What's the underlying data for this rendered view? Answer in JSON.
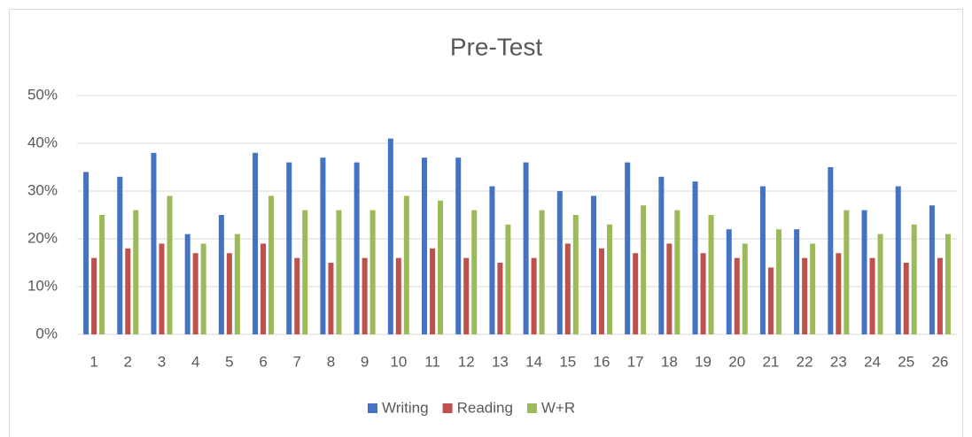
{
  "chart_data": {
    "type": "bar",
    "title": "Pre-Test",
    "categories": [
      "1",
      "2",
      "3",
      "4",
      "5",
      "6",
      "7",
      "8",
      "9",
      "10",
      "11",
      "12",
      "13",
      "14",
      "15",
      "16",
      "17",
      "18",
      "19",
      "20",
      "21",
      "22",
      "23",
      "24",
      "25",
      "26"
    ],
    "series": [
      {
        "name": "Writing",
        "color": "#4472c4",
        "values": [
          34,
          33,
          38,
          21,
          25,
          38,
          36,
          37,
          36,
          41,
          37,
          37,
          31,
          36,
          30,
          29,
          36,
          33,
          32,
          22,
          31,
          22,
          35,
          26,
          31,
          27
        ]
      },
      {
        "name": "Reading",
        "color": "#c0504d",
        "values": [
          16,
          18,
          19,
          17,
          17,
          19,
          16,
          15,
          16,
          16,
          18,
          16,
          15,
          16,
          19,
          18,
          17,
          19,
          17,
          16,
          14,
          16,
          17,
          16,
          15,
          16
        ]
      },
      {
        "name": "W+R",
        "color": "#9bbb59",
        "values": [
          25,
          26,
          29,
          19,
          21,
          29,
          26,
          26,
          26,
          29,
          28,
          26,
          23,
          26,
          25,
          23,
          27,
          26,
          25,
          19,
          22,
          19,
          26,
          21,
          23,
          21
        ]
      }
    ],
    "ylim": [
      0,
      50
    ],
    "yticks": [
      {
        "value": 0,
        "label": "0%"
      },
      {
        "value": 10,
        "label": "10%"
      },
      {
        "value": 20,
        "label": "20%"
      },
      {
        "value": 30,
        "label": "30%"
      },
      {
        "value": 40,
        "label": "40%"
      },
      {
        "value": 50,
        "label": "50%"
      }
    ],
    "grid": true,
    "legend": "bottom"
  }
}
